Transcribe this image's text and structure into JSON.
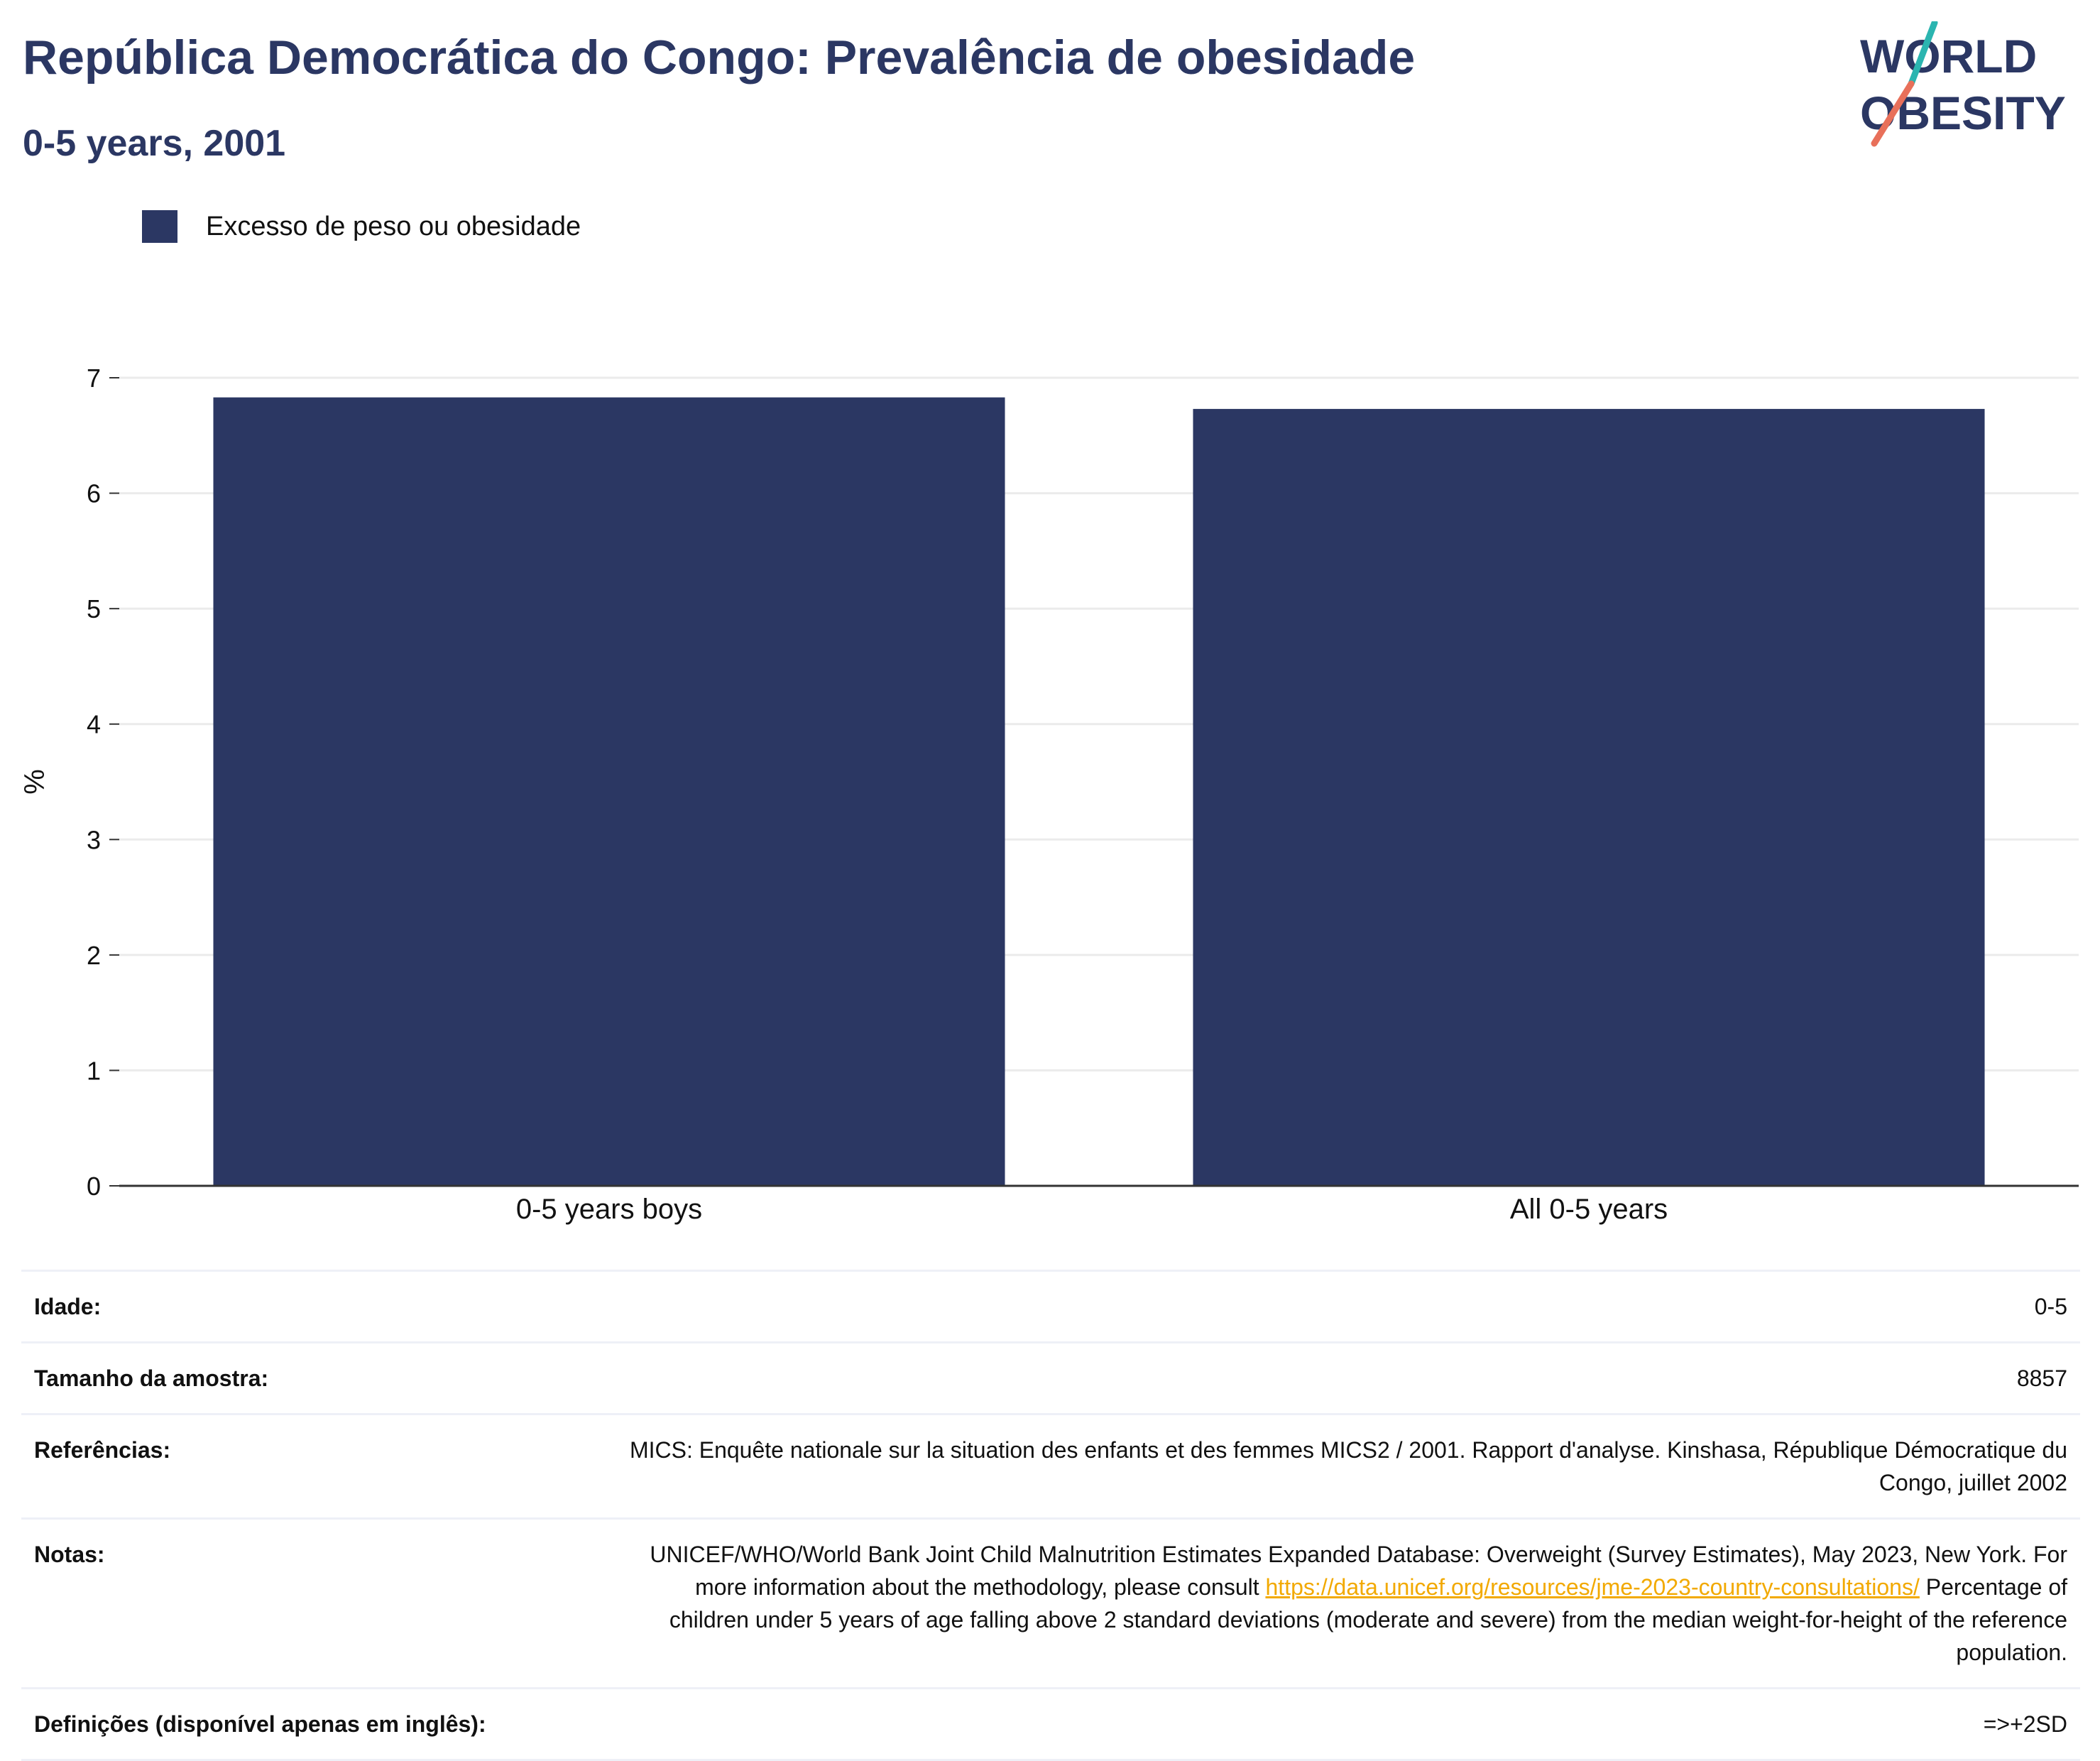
{
  "header": {
    "title": "República Democrática do Congo: Prevalência de obesidade",
    "subtitle": "0-5 years, 2001"
  },
  "logo": {
    "line1": "WORLD",
    "line2": "OBESITY",
    "colors": {
      "navy": "#2b3763",
      "teal": "#2bb5b0",
      "coral": "#e8705a"
    }
  },
  "legend": {
    "items": [
      {
        "label": "Excesso de peso ou obesidade",
        "color": "#2b3763"
      }
    ],
    "placement": "top-left"
  },
  "chart_data": {
    "type": "bar",
    "categories": [
      "0-5 years boys",
      "All 0-5 years"
    ],
    "series": [
      {
        "name": "Excesso de peso ou obesidade",
        "values": [
          6.83,
          6.73
        ],
        "color": "#2b3763"
      }
    ],
    "ylabel": "%",
    "xlabel": "",
    "ylim": [
      0,
      7
    ],
    "yticks": [
      0,
      1,
      2,
      3,
      4,
      5,
      6,
      7
    ],
    "grid": true
  },
  "info": {
    "age": {
      "label": "Idade:",
      "value": "0-5"
    },
    "sample": {
      "label": "Tamanho da amostra:",
      "value": "8857"
    },
    "references": {
      "label": "Referências:",
      "value": "MICS: Enquête nationale sur la situation des enfants et des femmes MICS2 / 2001. Rapport d'analyse. Kinshasa, République Démocratique du Congo, juillet 2002"
    },
    "notes": {
      "label": "Notas:",
      "text1": "UNICEF/WHO/World Bank Joint Child Malnutrition Estimates Expanded Database: Overweight (Survey Estimates), May 2023, New York. For more information about the methodology, please consult ",
      "link": "https://data.unicef.org/resources/jme-2023-country-consultations/",
      "text2": " Percentage of children under 5 years of age falling above 2 standard deviations (moderate and severe) from the median weight-for-height of the reference population."
    },
    "definitions": {
      "label": "Definições (disponível apenas em inglês):",
      "value": "=>+2SD"
    }
  }
}
